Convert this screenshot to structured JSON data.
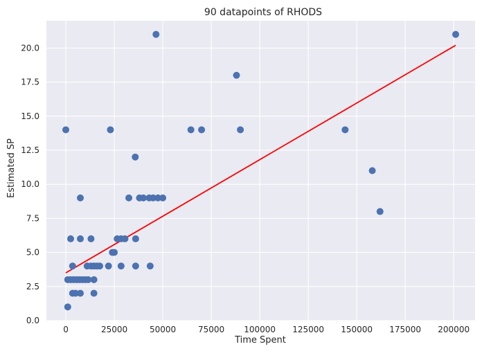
{
  "chart_data": {
    "type": "scatter",
    "title": "90 datapoints of RHODS",
    "xlabel": "Time Spent",
    "ylabel": "Estimated SP",
    "xlim": [
      -10000,
      211000
    ],
    "ylim": [
      0,
      22
    ],
    "xticks": [
      0,
      25000,
      50000,
      75000,
      100000,
      125000,
      150000,
      175000,
      200000
    ],
    "yticks": [
      0.0,
      2.5,
      5.0,
      7.5,
      10.0,
      12.5,
      15.0,
      17.5,
      20.0
    ],
    "ytick_labels": [
      "0.0",
      "2.5",
      "5.0",
      "7.5",
      "10.0",
      "12.5",
      "15.0",
      "17.5",
      "20.0"
    ],
    "grid": true,
    "colors": {
      "background": "#eaeaf2",
      "grid": "#ffffff",
      "points": "#4c72b0",
      "trend": "#ff0000"
    },
    "points": [
      [
        0,
        14
      ],
      [
        23000,
        14
      ],
      [
        46500,
        21
      ],
      [
        64500,
        14
      ],
      [
        70000,
        14
      ],
      [
        88000,
        18
      ],
      [
        90000,
        14
      ],
      [
        144000,
        14
      ],
      [
        158000,
        11
      ],
      [
        162000,
        8
      ],
      [
        201000,
        21
      ],
      [
        35800,
        12
      ],
      [
        7500,
        9
      ],
      [
        32500,
        9
      ],
      [
        38000,
        9
      ],
      [
        40000,
        9
      ],
      [
        43000,
        9
      ],
      [
        45000,
        9
      ],
      [
        47500,
        9
      ],
      [
        50000,
        9
      ],
      [
        2500,
        6
      ],
      [
        7500,
        6
      ],
      [
        13000,
        6
      ],
      [
        26500,
        6
      ],
      [
        28500,
        6
      ],
      [
        30500,
        6
      ],
      [
        36000,
        6
      ],
      [
        24000,
        5
      ],
      [
        25000,
        5
      ],
      [
        3500,
        4
      ],
      [
        11000,
        4
      ],
      [
        13000,
        4
      ],
      [
        14500,
        4
      ],
      [
        16000,
        4
      ],
      [
        17500,
        4
      ],
      [
        22000,
        4
      ],
      [
        28500,
        4
      ],
      [
        36000,
        4
      ],
      [
        43500,
        4
      ],
      [
        1000,
        3
      ],
      [
        2500,
        3
      ],
      [
        4000,
        3
      ],
      [
        5500,
        3
      ],
      [
        7000,
        3
      ],
      [
        8500,
        3
      ],
      [
        10000,
        3
      ],
      [
        11500,
        3
      ],
      [
        14500,
        3
      ],
      [
        3500,
        2
      ],
      [
        5000,
        2
      ],
      [
        7500,
        2
      ],
      [
        14500,
        2
      ],
      [
        1000,
        1
      ]
    ],
    "trendline": {
      "x": [
        0,
        201000
      ],
      "y": [
        3.5,
        20.2
      ]
    }
  }
}
